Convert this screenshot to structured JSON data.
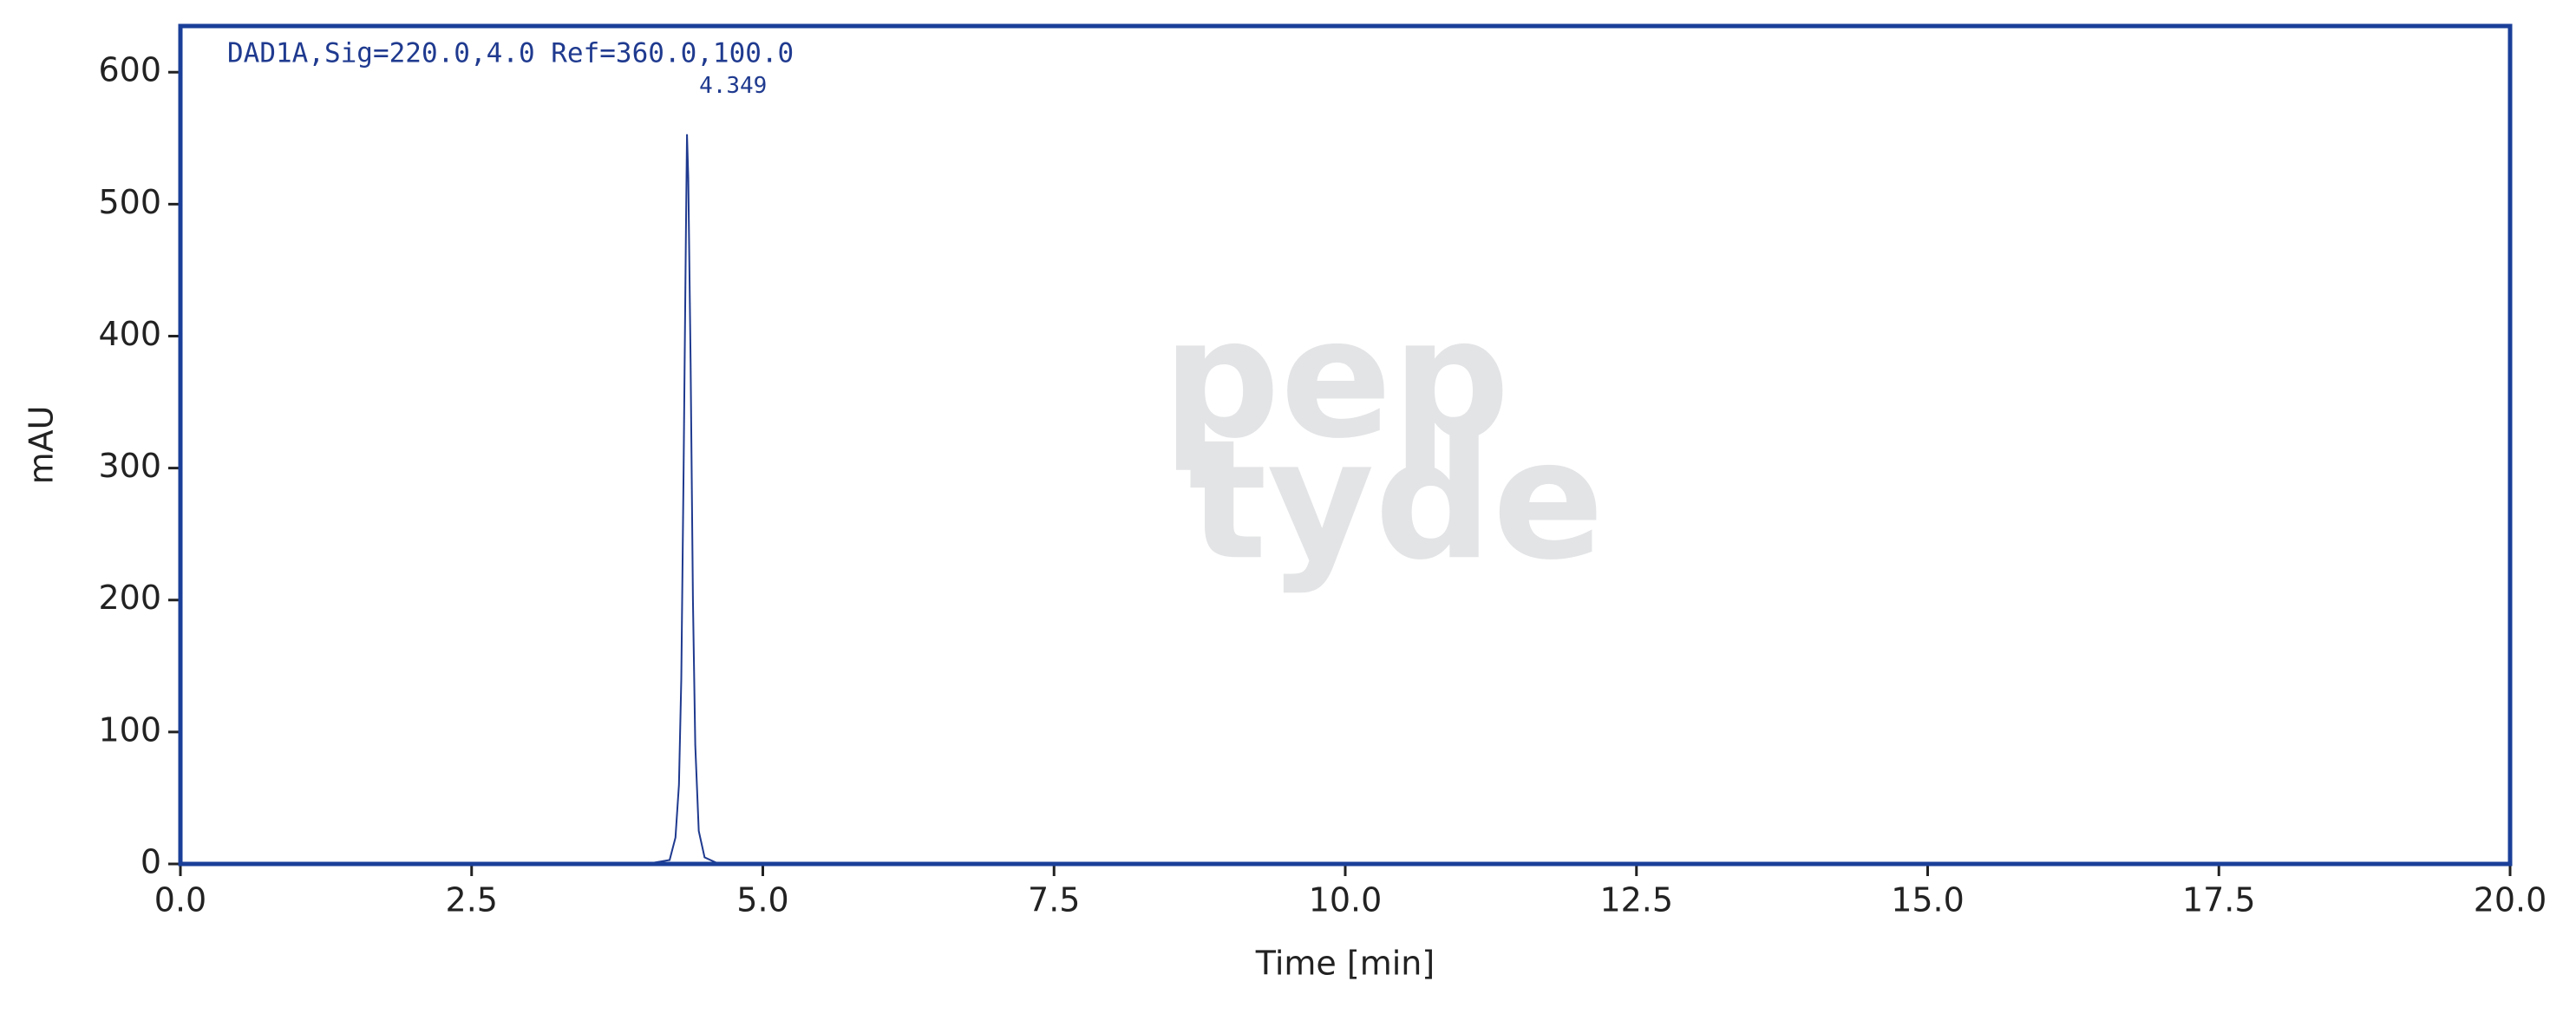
{
  "chart_data": {
    "type": "line",
    "header": "DAD1A,Sig=220.0,4.0 Ref=360.0,100.0",
    "xlabel": "Time [min]",
    "ylabel": "mAU",
    "watermark": [
      "pep",
      "tyde"
    ],
    "annotations": [
      {
        "text": "4.349",
        "x": 4.349
      }
    ],
    "x": [
      0,
      0.3,
      0.35,
      0.4,
      0.85,
      0.9,
      0.95,
      1.0,
      2,
      3,
      3.6,
      4.0,
      4.2,
      4.25,
      4.28,
      4.3,
      4.32,
      4.34,
      4.349,
      4.36,
      4.38,
      4.4,
      4.42,
      4.45,
      4.5,
      4.6,
      5,
      10,
      15,
      20
    ],
    "series": [
      {
        "name": "DAD1A",
        "color": "#1f3a8f",
        "values": [
          0,
          0,
          0.5,
          0,
          0,
          1,
          0,
          0,
          0,
          0,
          0.5,
          0,
          3,
          20,
          60,
          140,
          300,
          480,
          553,
          520,
          380,
          200,
          90,
          25,
          5,
          1,
          0,
          0,
          0,
          0
        ]
      }
    ],
    "xlim": [
      0,
      20
    ],
    "xticks": [
      {
        "value": 0,
        "label": "0.0"
      },
      2.5,
      {
        "value": 5,
        "label": "5.0"
      },
      7.5,
      {
        "value": 10,
        "label": "10.0"
      },
      12.5,
      {
        "value": 15,
        "label": "15.0"
      },
      17.5,
      {
        "value": 20,
        "label": "20.0"
      }
    ],
    "ylim": [
      0,
      635
    ],
    "yticks": [
      0,
      100,
      200,
      300,
      400,
      500,
      600
    ],
    "frame_color": "#1a3f99"
  }
}
